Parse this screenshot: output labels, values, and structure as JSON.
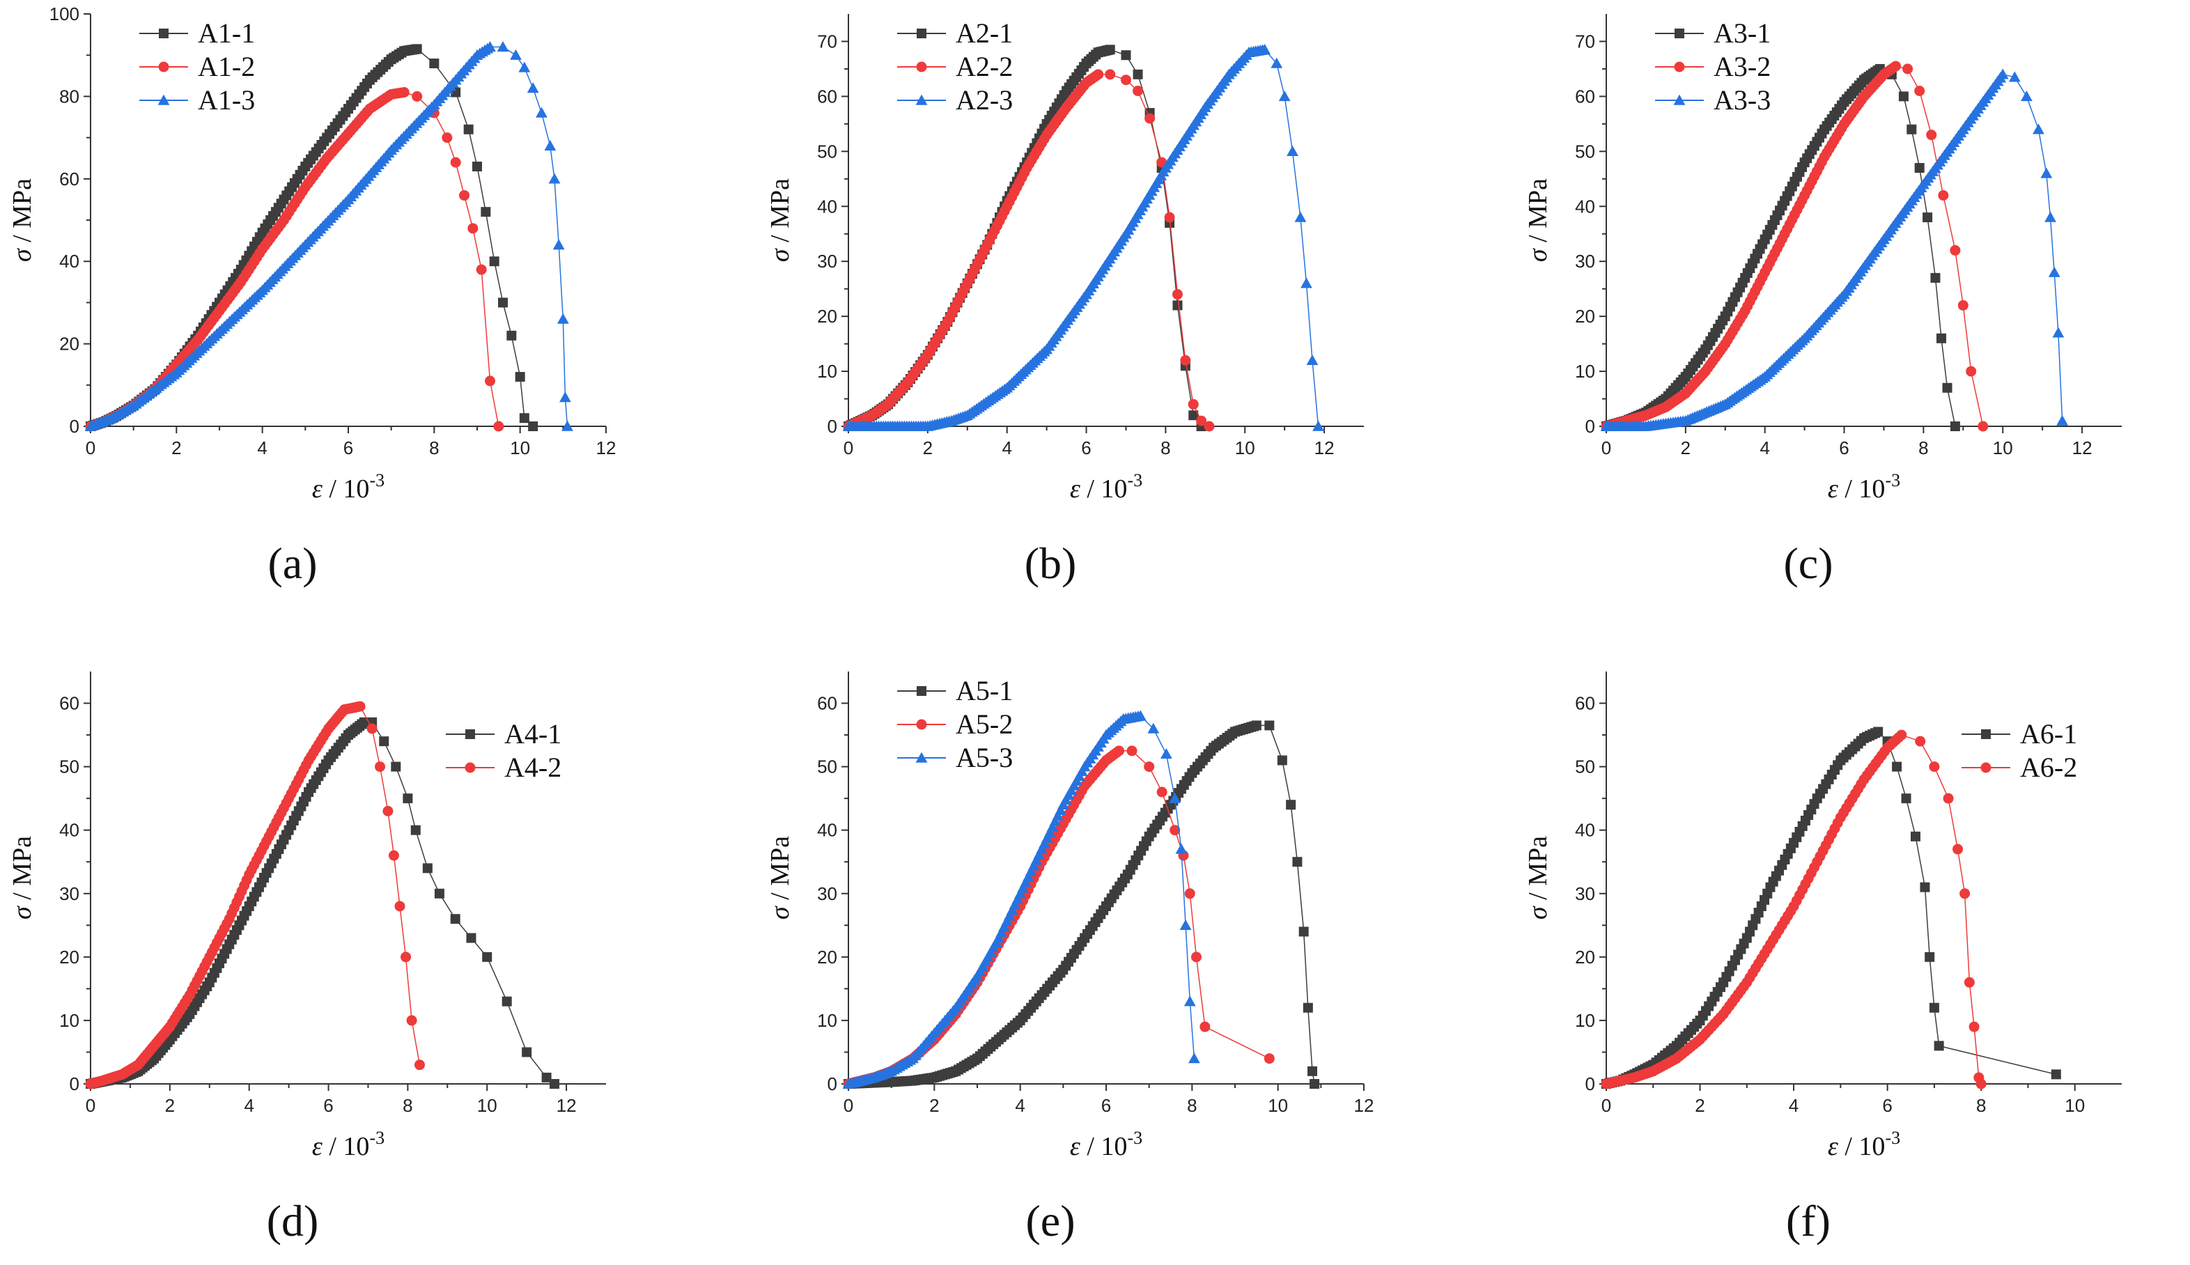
{
  "figure": {
    "panel_labels": [
      "(a)",
      "(b)",
      "(c)",
      "(d)",
      "(e)",
      "(f)"
    ]
  },
  "colors": {
    "black": "#3d3d3d",
    "red": "#ee3a3a",
    "blue": "#2673e0",
    "axis": "#333333"
  },
  "chart_data": [
    {
      "id": "a",
      "type": "line",
      "xlabel_symbol": "ε",
      "xlabel_unit": " / 10",
      "xlabel_exp": "-3",
      "ylabel_symbol": "σ",
      "ylabel_unit": " / MPa",
      "xlim": [
        0,
        12
      ],
      "ylim": [
        0,
        100
      ],
      "xticks": [
        0,
        2,
        4,
        6,
        8,
        10,
        12
      ],
      "yticks": [
        0,
        20,
        40,
        60,
        80,
        100
      ],
      "legend": "top-left",
      "series": [
        {
          "name": "A1-1",
          "color": "black",
          "marker": "square",
          "x": [
            0,
            0.3,
            0.6,
            1,
            1.5,
            2,
            2.5,
            3,
            3.5,
            4,
            4.5,
            5,
            5.5,
            6,
            6.5,
            7,
            7.3,
            7.6,
            8,
            8.5,
            8.8,
            9,
            9.2,
            9.4,
            9.6,
            9.8,
            10,
            10.1,
            10.3
          ],
          "y": [
            0,
            1,
            2.5,
            5,
            9,
            15,
            22,
            30,
            38,
            47,
            55,
            63,
            70,
            77,
            84,
            89,
            91,
            91.5,
            88,
            81,
            72,
            63,
            52,
            40,
            30,
            22,
            12,
            2,
            0
          ]
        },
        {
          "name": "A1-2",
          "color": "red",
          "marker": "circle",
          "x": [
            0,
            0.3,
            0.6,
            1,
            1.5,
            2,
            2.5,
            3,
            3.5,
            4,
            4.5,
            5,
            5.5,
            6,
            6.5,
            7,
            7.3,
            7.6,
            8,
            8.3,
            8.5,
            8.7,
            8.9,
            9.1,
            9.3,
            9.5
          ],
          "y": [
            0,
            1,
            2.5,
            5,
            9,
            15,
            21,
            28,
            35,
            43,
            50,
            58,
            65,
            71,
            77,
            80.5,
            81,
            80,
            76,
            70,
            64,
            56,
            48,
            38,
            11,
            0
          ]
        },
        {
          "name": "A1-3",
          "color": "blue",
          "marker": "triangle",
          "x": [
            0,
            0.5,
            1,
            2,
            3,
            4,
            5,
            6,
            7,
            8,
            8.5,
            9,
            9.3,
            9.6,
            9.9,
            10.1,
            10.3,
            10.5,
            10.7,
            10.8,
            10.9,
            11,
            11.05,
            11.1
          ],
          "y": [
            0,
            2,
            5,
            13,
            23,
            33,
            44,
            55,
            67,
            78,
            84,
            90,
            92,
            92,
            90,
            87,
            82,
            76,
            68,
            60,
            44,
            26,
            7,
            0
          ]
        }
      ]
    },
    {
      "id": "b",
      "type": "line",
      "xlabel_symbol": "ε",
      "xlabel_unit": " / 10",
      "xlabel_exp": "-3",
      "ylabel_symbol": "σ",
      "ylabel_unit": " / MPa",
      "xlim": [
        0,
        13
      ],
      "ylim": [
        0,
        75
      ],
      "xticks": [
        0,
        2,
        4,
        6,
        8,
        10,
        12
      ],
      "yticks": [
        0,
        10,
        20,
        30,
        40,
        50,
        60,
        70
      ],
      "legend": "top-left",
      "series": [
        {
          "name": "A2-1",
          "color": "black",
          "marker": "square",
          "x": [
            0,
            0.3,
            0.6,
            1,
            1.5,
            2,
            2.5,
            3,
            3.5,
            4,
            4.5,
            5,
            5.5,
            6,
            6.3,
            6.6,
            7,
            7.3,
            7.6,
            7.9,
            8.1,
            8.3,
            8.5,
            8.7,
            8.9
          ],
          "y": [
            0,
            1,
            2,
            4,
            8,
            13,
            19,
            26,
            33,
            41,
            48,
            55,
            61,
            66,
            68,
            68.5,
            67.5,
            64,
            57,
            47,
            37,
            22,
            11,
            2,
            0
          ]
        },
        {
          "name": "A2-2",
          "color": "red",
          "marker": "circle",
          "x": [
            0,
            0.3,
            0.6,
            1,
            1.5,
            2,
            2.5,
            3,
            3.5,
            4,
            4.5,
            5,
            5.5,
            6,
            6.3,
            6.6,
            7,
            7.3,
            7.6,
            7.9,
            8.1,
            8.3,
            8.5,
            8.7,
            8.9,
            9.1
          ],
          "y": [
            0,
            1,
            2,
            4,
            8,
            13,
            19,
            26,
            33,
            40,
            47,
            53,
            58,
            62.5,
            64,
            64,
            63,
            61,
            56,
            48,
            38,
            24,
            12,
            4,
            1,
            0
          ]
        },
        {
          "name": "A2-3",
          "color": "blue",
          "marker": "triangle",
          "x": [
            0,
            1,
            2,
            2.6,
            3,
            4,
            5,
            6,
            7,
            8,
            9,
            9.6,
            10.1,
            10.5,
            10.8,
            11,
            11.2,
            11.4,
            11.55,
            11.7,
            11.85
          ],
          "y": [
            0,
            0,
            0,
            1,
            2,
            7,
            14,
            24,
            35,
            47,
            58,
            64,
            68,
            68.5,
            66,
            60,
            50,
            38,
            26,
            12,
            0
          ]
        }
      ]
    },
    {
      "id": "c",
      "type": "line",
      "xlabel_symbol": "ε",
      "xlabel_unit": " / 10",
      "xlabel_exp": "-3",
      "ylabel_symbol": "σ",
      "ylabel_unit": " / MPa",
      "xlim": [
        0,
        13
      ],
      "ylim": [
        0,
        75
      ],
      "xticks": [
        0,
        2,
        4,
        6,
        8,
        10,
        12
      ],
      "yticks": [
        0,
        10,
        20,
        30,
        40,
        50,
        60,
        70
      ],
      "legend": "top-left",
      "series": [
        {
          "name": "A3-1",
          "color": "black",
          "marker": "square",
          "x": [
            0,
            0.5,
            1,
            1.5,
            2,
            2.5,
            3,
            3.5,
            4,
            4.5,
            5,
            5.5,
            6,
            6.5,
            6.9,
            7.2,
            7.5,
            7.7,
            7.9,
            8.1,
            8.3,
            8.45,
            8.6,
            8.8
          ],
          "y": [
            0,
            1,
            2.5,
            5,
            9,
            14,
            20,
            27,
            34,
            41,
            48,
            54,
            59,
            63,
            65,
            64,
            60,
            54,
            47,
            38,
            27,
            16,
            7,
            0
          ]
        },
        {
          "name": "A3-2",
          "color": "red",
          "marker": "circle",
          "x": [
            0,
            0.5,
            1,
            1.5,
            2,
            2.5,
            3,
            3.5,
            4,
            4.5,
            5,
            5.5,
            6,
            6.5,
            7,
            7.3,
            7.6,
            7.9,
            8.2,
            8.5,
            8.8,
            9,
            9.2,
            9.5
          ],
          "y": [
            0,
            1,
            2,
            3.5,
            6,
            10,
            15,
            21,
            28,
            35,
            42,
            49,
            55,
            60,
            64,
            65.5,
            65,
            61,
            53,
            42,
            32,
            22,
            10,
            0
          ]
        },
        {
          "name": "A3-3",
          "color": "blue",
          "marker": "triangle",
          "x": [
            0,
            1,
            1.5,
            2,
            3,
            4,
            5,
            6,
            7,
            8,
            9,
            9.5,
            10,
            10.3,
            10.6,
            10.9,
            11.1,
            11.2,
            11.3,
            11.4,
            11.5
          ],
          "y": [
            0,
            0,
            0.5,
            1,
            4,
            9,
            16,
            24,
            34,
            44,
            54,
            59,
            64,
            63.5,
            60,
            54,
            46,
            38,
            28,
            17,
            1
          ]
        }
      ]
    },
    {
      "id": "d",
      "type": "line",
      "xlabel_symbol": "ε",
      "xlabel_unit": " / 10",
      "xlabel_exp": "-3",
      "ylabel_symbol": "σ",
      "ylabel_unit": " / MPa",
      "xlim": [
        0,
        13
      ],
      "ylim": [
        0,
        65
      ],
      "xticks": [
        0,
        2,
        4,
        6,
        8,
        10,
        12
      ],
      "yticks": [
        0,
        10,
        20,
        30,
        40,
        50,
        60
      ],
      "legend": "top-right",
      "series": [
        {
          "name": "A4-1",
          "color": "black",
          "marker": "square",
          "x": [
            0,
            0.4,
            0.8,
            1.2,
            1.6,
            2,
            2.5,
            3,
            3.5,
            4,
            4.5,
            5,
            5.5,
            6,
            6.5,
            6.9,
            7.1,
            7.4,
            7.7,
            8,
            8.2,
            8.5,
            8.8,
            9.2,
            9.6,
            10,
            10.5,
            11,
            11.5,
            11.7
          ],
          "y": [
            0,
            0.5,
            1,
            2,
            4,
            7,
            11,
            16,
            22,
            28,
            34,
            40,
            46,
            51,
            55,
            57,
            57,
            54,
            50,
            45,
            40,
            34,
            30,
            26,
            23,
            20,
            13,
            5,
            1,
            0
          ]
        },
        {
          "name": "A4-2",
          "color": "red",
          "marker": "circle",
          "x": [
            0,
            0.3,
            0.8,
            1.2,
            1.6,
            2,
            2.5,
            3,
            3.5,
            4,
            4.5,
            5,
            5.5,
            6,
            6.4,
            6.8,
            7.1,
            7.3,
            7.5,
            7.65,
            7.8,
            7.95,
            8.1,
            8.3
          ],
          "y": [
            0,
            0.5,
            1.5,
            3,
            6,
            9,
            14,
            20,
            26,
            33,
            39,
            45,
            51,
            56,
            59,
            59.5,
            56,
            50,
            43,
            36,
            28,
            20,
            10,
            3
          ]
        }
      ]
    },
    {
      "id": "e",
      "type": "line",
      "xlabel_symbol": "ε",
      "xlabel_unit": " / 10",
      "xlabel_exp": "-3",
      "ylabel_symbol": "σ",
      "ylabel_unit": " / MPa",
      "xlim": [
        0,
        12
      ],
      "ylim": [
        0,
        65
      ],
      "xticks": [
        0,
        2,
        4,
        6,
        8,
        10,
        12
      ],
      "yticks": [
        0,
        10,
        20,
        30,
        40,
        50,
        60
      ],
      "legend": "top-left",
      "series": [
        {
          "name": "A5-1",
          "color": "black",
          "marker": "square",
          "x": [
            0,
            1,
            1.5,
            2,
            2.5,
            3,
            3.5,
            4,
            4.5,
            5,
            5.5,
            6,
            6.5,
            7,
            7.5,
            8,
            8.5,
            9,
            9.5,
            9.8,
            10.1,
            10.3,
            10.45,
            10.6,
            10.7,
            10.8,
            10.85
          ],
          "y": [
            0,
            0.3,
            0.5,
            1,
            2,
            4,
            7,
            10,
            14,
            18,
            23,
            28,
            33,
            39,
            44,
            49,
            53,
            55.5,
            56.5,
            56.5,
            51,
            44,
            35,
            24,
            12,
            2,
            0
          ]
        },
        {
          "name": "A5-2",
          "color": "red",
          "marker": "circle",
          "x": [
            0,
            0.3,
            0.6,
            1,
            1.5,
            2,
            2.5,
            3,
            3.5,
            4,
            4.5,
            5,
            5.5,
            6,
            6.3,
            6.6,
            7,
            7.3,
            7.6,
            7.8,
            7.95,
            8.1,
            8.3,
            9.8
          ],
          "y": [
            0,
            0.5,
            1,
            2,
            4,
            7,
            11,
            16,
            22,
            28,
            35,
            41,
            47,
            51,
            52.5,
            52.5,
            50,
            46,
            40,
            36,
            30,
            20,
            9,
            4
          ]
        },
        {
          "name": "A5-3",
          "color": "blue",
          "marker": "triangle",
          "x": [
            0,
            0.3,
            0.6,
            1,
            1.5,
            2,
            2.5,
            3,
            3.5,
            4,
            4.5,
            5,
            5.5,
            6,
            6.4,
            6.8,
            7.1,
            7.4,
            7.6,
            7.75,
            7.85,
            7.95,
            8.05
          ],
          "y": [
            0,
            0.5,
            1,
            2,
            4,
            8,
            12,
            17,
            23,
            30,
            37,
            44,
            50,
            55,
            57.5,
            58,
            56,
            52,
            45,
            37,
            25,
            13,
            4
          ]
        }
      ]
    },
    {
      "id": "f",
      "type": "line",
      "xlabel_symbol": "ε",
      "xlabel_unit": " / 10",
      "xlabel_exp": "-3",
      "ylabel_symbol": "σ",
      "ylabel_unit": " / MPa",
      "xlim": [
        0,
        11
      ],
      "ylim": [
        0,
        65
      ],
      "xticks": [
        0,
        2,
        4,
        6,
        8,
        10
      ],
      "yticks": [
        0,
        10,
        20,
        30,
        40,
        50,
        60
      ],
      "legend": "top-right",
      "series": [
        {
          "name": "A6-1",
          "color": "black",
          "marker": "square",
          "x": [
            0,
            0.3,
            0.6,
            1,
            1.5,
            2,
            2.5,
            3,
            3.5,
            4,
            4.5,
            5,
            5.5,
            5.8,
            6,
            6.2,
            6.4,
            6.6,
            6.8,
            6.9,
            7,
            7.1,
            9.6
          ],
          "y": [
            0,
            0.5,
            1.5,
            3,
            6,
            10,
            16,
            23,
            31,
            38,
            45,
            51,
            54.5,
            55.5,
            54,
            50,
            45,
            39,
            31,
            20,
            12,
            6,
            1.5
          ]
        },
        {
          "name": "A6-2",
          "color": "red",
          "marker": "circle",
          "x": [
            0,
            0.3,
            0.6,
            1,
            1.5,
            2,
            2.5,
            3,
            3.5,
            4,
            4.5,
            5,
            5.5,
            6,
            6.3,
            6.7,
            7,
            7.3,
            7.5,
            7.65,
            7.75,
            7.85,
            7.95,
            8
          ],
          "y": [
            0,
            0.5,
            1,
            2,
            4,
            7,
            11,
            16,
            22,
            28,
            35,
            42,
            48,
            53,
            55,
            54,
            50,
            45,
            37,
            30,
            16,
            9,
            1,
            0
          ]
        }
      ]
    }
  ]
}
